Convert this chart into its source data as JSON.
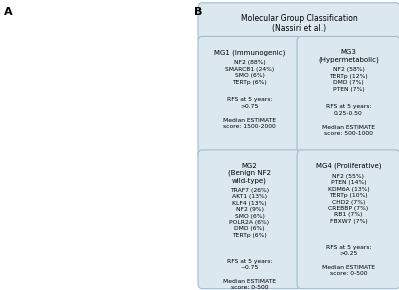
{
  "title": "Molecular Group Classification\n(Nassiri et al.)",
  "panel_label_B": "B",
  "panel_label_A": "A",
  "background_color": "#ffffff",
  "header_bg": "#dce8f0",
  "box_bg": "#dce8f0",
  "border_color": "#a0bcd0",
  "groups": [
    {
      "name": "MG1 (Immunogenic)",
      "name_italic": "",
      "mutations": "NF2 (88%)\nSMARCB1 (24%)\nSMO (6%)\nTERTp (6%)",
      "rfs": "RFS at 5 years:\n>0.75",
      "estimate": "Median ESTIMATE\nscore: 1500-2000"
    },
    {
      "name": "MG3\n(Hypermetabolic)",
      "name_italic": "",
      "mutations": "NF2 (58%)\nTERTp (12%)\nDMD (7%)\nPTEN (7%)",
      "rfs": "RFS at 5 years:\n0.25-0.50",
      "estimate": "Median ESTIMATE\nscore: 500-1000"
    },
    {
      "name": "MG2\n(Benign NF2\nwild-type)",
      "name_italic": "NF2",
      "mutations": "TRAF7 (26%)\nAKT1 (13%)\nKLF4 (13%)\nNF2 (9%)\nSMO (6%)\nPOLR2A (6%)\nDMD (6%)\nTERTp (6%)",
      "rfs": "RFS at 5 years:\n~0.75",
      "estimate": "Median ESTIMATE\nscore: 0-500"
    },
    {
      "name": "MG4 (Proliferative)",
      "name_italic": "",
      "mutations": "NF2 (55%)\nPTEN (14%)\nKDM6A (13%)\nTERTp (10%)\nCHD2 (7%)\nCREBBP (7%)\nRB1 (7%)\nFBXW7 (7%)",
      "rfs": "RFS at 5 years:\n>0.25",
      "estimate": "Median ESTIMATE\nscore: 0-500"
    }
  ]
}
